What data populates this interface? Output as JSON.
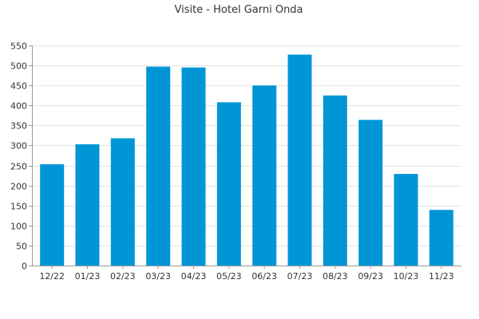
{
  "chart_data": {
    "type": "bar",
    "title": "Visite - Hotel Garni Onda",
    "xlabel": "",
    "ylabel": "",
    "categories": [
      "12/22",
      "01/23",
      "02/23",
      "03/23",
      "04/23",
      "05/23",
      "06/23",
      "07/23",
      "08/23",
      "09/23",
      "10/23",
      "11/23"
    ],
    "values": [
      253,
      303,
      318,
      497,
      495,
      408,
      450,
      527,
      425,
      364,
      229,
      139
    ],
    "ylim": [
      0,
      550
    ],
    "yticks": [
      0,
      50,
      100,
      150,
      200,
      250,
      300,
      350,
      400,
      450,
      500,
      550
    ],
    "grid": true,
    "legend": "none",
    "bar_color": "#0096d6"
  }
}
